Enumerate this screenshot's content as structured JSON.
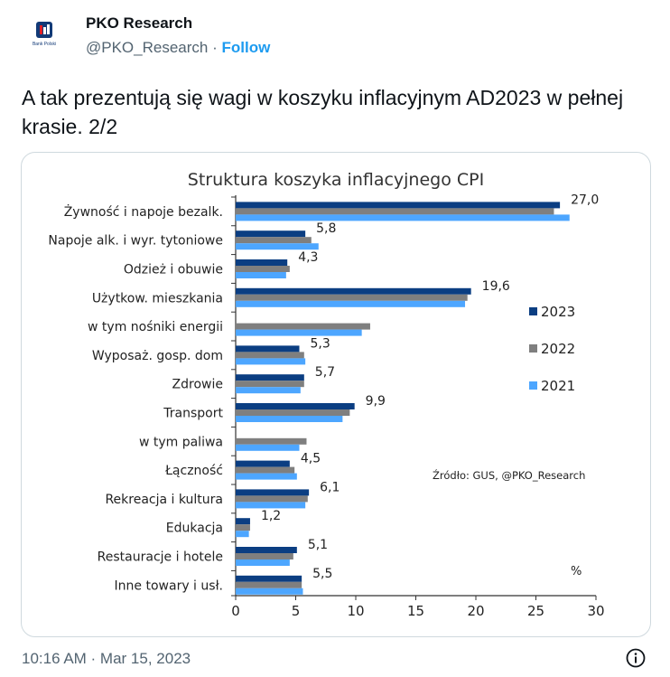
{
  "author": {
    "name": "PKO Research",
    "handle": "@PKO_Research",
    "separator": "·",
    "follow_label": "Follow",
    "avatar_text": "Bank Polski"
  },
  "tweet": {
    "text": "A tak prezentują się wagi w koszyku inflacyjnym AD2023 w pełnej krasie. 2/2",
    "timestamp": "10:16 AM · Mar 15, 2023"
  },
  "colors": {
    "2023": "#0b3e82",
    "2022": "#7f7f7f",
    "2021": "#4da6ff"
  },
  "chart_data": {
    "type": "bar",
    "orientation": "horizontal",
    "title": "Struktura koszyka inflacyjnego CPI",
    "unit": "%",
    "source": "Źródło: GUS, @PKO_Research",
    "xlim": [
      0,
      30
    ],
    "xticks": [
      0,
      5,
      10,
      15,
      20,
      25,
      30
    ],
    "legend_position": "right",
    "categories": [
      "Żywność i napoje bezalk.",
      "Napoje alk. i wyr. tytoniowe",
      "Odzież i obuwie",
      "Użytkow. mieszkania",
      "w tym nośniki energii",
      "Wyposaż. gosp. dom",
      "Zdrowie",
      "Transport",
      "w tym paliwa",
      "Łączność",
      "Rekreacja i kultura",
      "Edukacja",
      "Restauracje i hotele",
      "Inne towary i usł."
    ],
    "series": [
      {
        "name": "2023",
        "values": [
          27.0,
          5.8,
          4.3,
          19.6,
          null,
          5.3,
          5.7,
          9.9,
          null,
          4.5,
          6.1,
          1.2,
          5.1,
          5.5
        ]
      },
      {
        "name": "2022",
        "values": [
          26.5,
          6.3,
          4.5,
          19.3,
          11.2,
          5.7,
          5.7,
          9.5,
          5.9,
          4.9,
          6.0,
          1.2,
          4.8,
          5.5
        ]
      },
      {
        "name": "2021",
        "values": [
          27.8,
          6.9,
          4.2,
          19.1,
          10.5,
          5.8,
          5.4,
          8.9,
          5.3,
          5.1,
          5.8,
          1.1,
          4.5,
          5.6
        ]
      }
    ],
    "data_labels": [
      "27,0",
      "5,8",
      "4,3",
      "19,6",
      "",
      "5,3",
      "5,7",
      "9,9",
      "",
      "4,5",
      "6,1",
      "1,2",
      "5,1",
      "5,5"
    ]
  }
}
